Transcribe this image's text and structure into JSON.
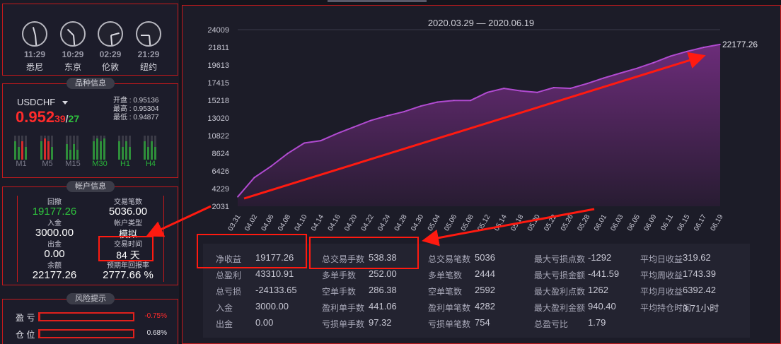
{
  "clocks": [
    {
      "time": "11:29",
      "city": "悉尼"
    },
    {
      "time": "10:29",
      "city": "东京"
    },
    {
      "time": "02:29",
      "city": "伦敦"
    },
    {
      "time": "21:29",
      "city": "纽约"
    }
  ],
  "symbol": {
    "title": "品种信息",
    "name": "USDCHF",
    "price_main": "0.952",
    "price_small": "39",
    "price_sep": "/",
    "price_ask": "27",
    "open": "开盘 : 0.95136",
    "high": "最高 : 0.95304",
    "low": "最低 : 0.94877",
    "timeframes": [
      "M1",
      "M5",
      "M15",
      "M30",
      "H1",
      "H4"
    ]
  },
  "account": {
    "title": "帐户信息",
    "drawdown_label": "回撤",
    "drawdown": "19177.26",
    "trades_label": "交易笔数",
    "trades": "5036.00",
    "deposit_label": "入金",
    "deposit": "3000.00",
    "type_label": "帐户类型",
    "type": "模拟",
    "withdraw_label": "出金",
    "withdraw": "0.00",
    "time_label": "交易时间",
    "time": "84 天",
    "balance_label": "余额",
    "balance": "22177.26",
    "annual_label": "预期年回报率",
    "annual": "2777.66 %"
  },
  "risk": {
    "title": "风险提示",
    "pnl_label": "盈 亏",
    "pnl": "-0.75%",
    "pnl_fill": 0.0075,
    "pos_label": "仓 位",
    "pos": "0.68%",
    "pos_fill": 0.0068
  },
  "chart_data": {
    "type": "area",
    "title": "2020.03.29 — 2020.06.19",
    "x": [
      "03.31",
      "04.02",
      "04.06",
      "04.08",
      "04.10",
      "04.14",
      "04.16",
      "04.20",
      "04.22",
      "04.24",
      "04.28",
      "04.30",
      "05.04",
      "05.06",
      "05.08",
      "05.12",
      "05.14",
      "05.18",
      "05.20",
      "05.22",
      "05.26",
      "05.28",
      "06.01",
      "06.03",
      "06.05",
      "06.09",
      "06.11",
      "06.15",
      "06.17",
      "06.19"
    ],
    "yticks": [
      "24009",
      "21811",
      "19613",
      "17415",
      "15218",
      "13020",
      "10822",
      "8624",
      "6426",
      "4229",
      "2031"
    ],
    "ylim": [
      2031,
      24009
    ],
    "values": [
      3200,
      5600,
      7000,
      8600,
      9900,
      10200,
      11100,
      11900,
      12700,
      13300,
      13800,
      14500,
      15000,
      15200,
      15200,
      16200,
      16700,
      16400,
      16200,
      16800,
      16700,
      17300,
      18000,
      18600,
      19200,
      19900,
      20700,
      21300,
      21800,
      22177
    ],
    "last_label": "22177.26"
  },
  "stats": [
    [
      [
        "净收益",
        "19177.26"
      ],
      [
        "总盈利",
        "43310.91"
      ],
      [
        "总亏损",
        "-24133.65"
      ],
      [
        "入金",
        "3000.00"
      ],
      [
        "出金",
        "0.00"
      ]
    ],
    [
      [
        "总交易手数",
        "538.38"
      ],
      [
        "多单手数",
        "252.00"
      ],
      [
        "空单手数",
        "286.38"
      ],
      [
        "盈利单手数",
        "441.06"
      ],
      [
        "亏损单手数",
        "97.32"
      ]
    ],
    [
      [
        "总交易笔数",
        "5036"
      ],
      [
        "多单笔数",
        "2444"
      ],
      [
        "空单笔数",
        "2592"
      ],
      [
        "盈利单笔数",
        "4282"
      ],
      [
        "亏损单笔数",
        "754"
      ]
    ],
    [
      [
        "最大亏损点数",
        "-1292"
      ],
      [
        "最大亏损金额",
        "-441.59"
      ],
      [
        "最大盈利点数",
        "1262"
      ],
      [
        "最大盈利金额",
        "940.40"
      ],
      [
        "总盈亏比",
        "1.79"
      ]
    ],
    [
      [
        "平均日收益",
        "319.62"
      ],
      [
        "平均周收益",
        "1743.39"
      ],
      [
        "平均月收益",
        "6392.42"
      ],
      [
        "平均持仓时间",
        "3.71小时"
      ]
    ]
  ]
}
